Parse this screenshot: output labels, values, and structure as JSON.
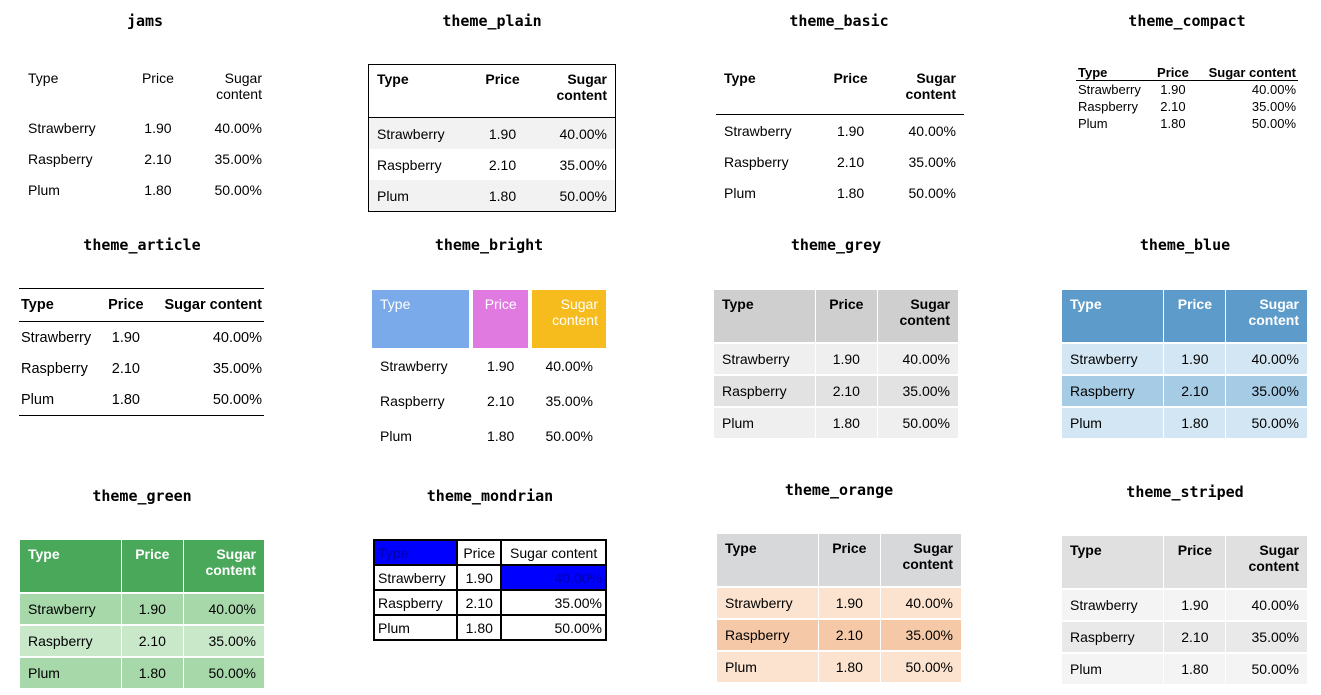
{
  "headers": [
    "Type",
    "Price",
    "Sugar content"
  ],
  "rows": [
    [
      "Strawberry",
      "1.90",
      "40.00%"
    ],
    [
      "Raspberry",
      "2.10",
      "35.00%"
    ],
    [
      "Plum",
      "1.80",
      "50.00%"
    ]
  ],
  "header_sugar_line1": "Sugar",
  "header_sugar_line2": "content",
  "titles": {
    "jams": "jams",
    "plain": "theme_plain",
    "basic": "theme_basic",
    "compact": "theme_compact",
    "article": "theme_article",
    "bright": "theme_bright",
    "grey": "theme_grey",
    "blue": "theme_blue",
    "green": "theme_green",
    "mondrian": "theme_mondrian",
    "orange": "theme_orange",
    "striped": "theme_striped"
  },
  "colors": {
    "bright_type": "#7baaea",
    "bright_price": "#e07ae0",
    "bright_sugar": "#f6bb1c",
    "mondrian_blue": "#0000ff",
    "blue_header": "#5d9bcb",
    "green_header": "#4aa85a",
    "orange_row": "#f5c9a7"
  }
}
